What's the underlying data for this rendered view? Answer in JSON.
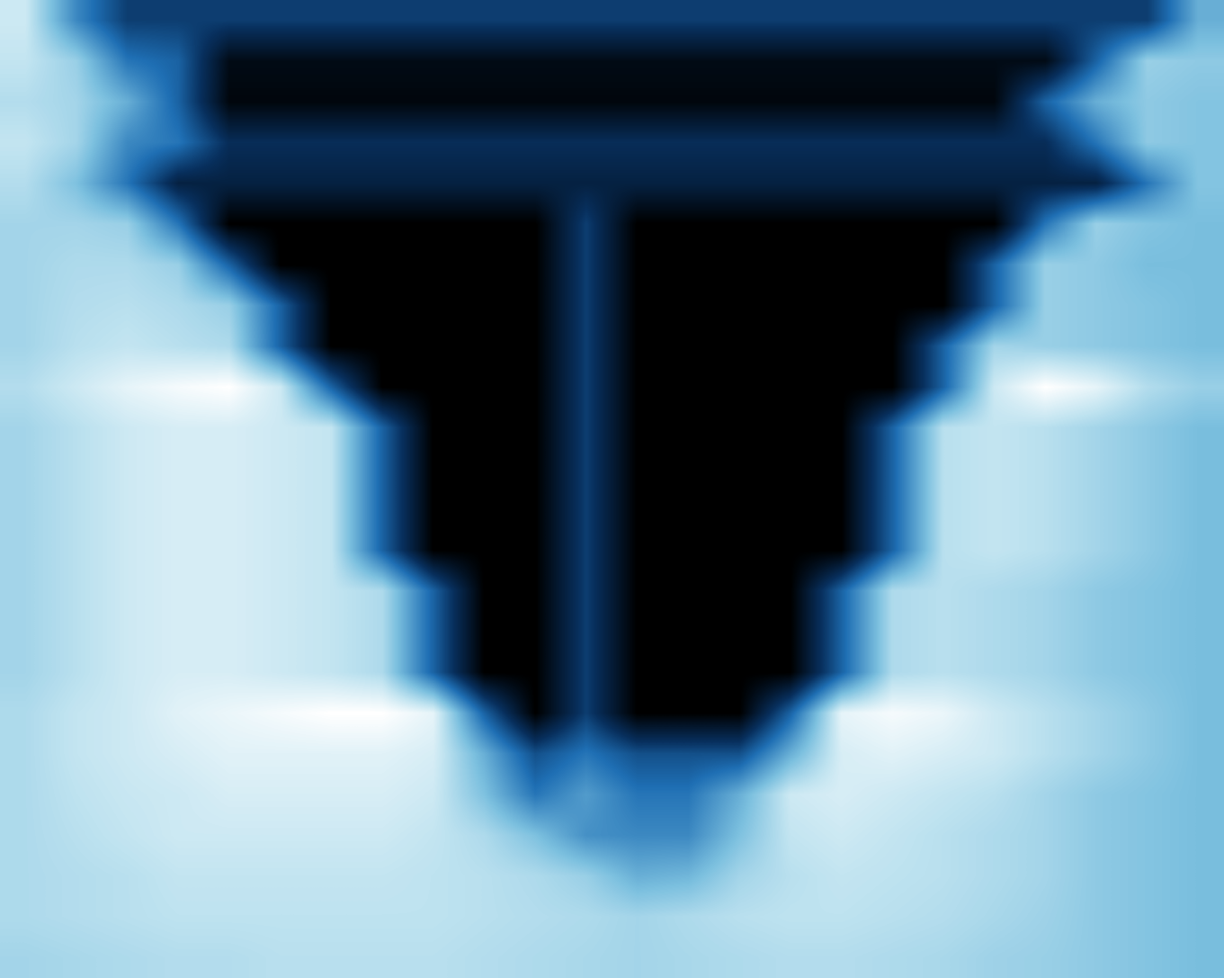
{
  "chart_data": {
    "type": "heatmap",
    "tick_labels": false,
    "cells": [
      [
        0.8,
        0.5,
        0.3,
        0.3,
        0.3,
        0.3,
        0.3,
        0.3,
        0.3,
        0.3,
        0.3,
        0.3,
        0.3,
        0.3,
        0.3,
        0.3,
        0.3,
        0.3,
        0.3,
        0.3,
        0.3,
        0.3,
        0.3,
        0.6
      ],
      [
        0.78,
        0.7,
        0.45,
        0.4,
        0.1,
        0.1,
        0.1,
        0.1,
        0.1,
        0.1,
        0.1,
        0.1,
        0.1,
        0.1,
        0.1,
        0.1,
        0.1,
        0.1,
        0.1,
        0.1,
        0.1,
        0.4,
        0.7,
        0.68
      ],
      [
        0.75,
        0.72,
        0.6,
        0.4,
        0.08,
        0.08,
        0.08,
        0.08,
        0.08,
        0.08,
        0.08,
        0.08,
        0.08,
        0.08,
        0.08,
        0.08,
        0.08,
        0.08,
        0.08,
        0.08,
        0.4,
        0.6,
        0.68,
        0.66
      ],
      [
        0.78,
        0.72,
        0.5,
        0.45,
        0.25,
        0.25,
        0.25,
        0.25,
        0.25,
        0.25,
        0.25,
        0.25,
        0.25,
        0.25,
        0.25,
        0.25,
        0.25,
        0.25,
        0.25,
        0.25,
        0.25,
        0.45,
        0.68,
        0.66
      ],
      [
        0.75,
        0.65,
        0.45,
        0.2,
        0.2,
        0.2,
        0.2,
        0.2,
        0.2,
        0.2,
        0.2,
        0.2,
        0.2,
        0.2,
        0.2,
        0.2,
        0.2,
        0.2,
        0.2,
        0.2,
        0.2,
        0.2,
        0.45,
        0.66
      ],
      [
        0.72,
        0.72,
        0.7,
        0.45,
        0.05,
        0.05,
        0.05,
        0.05,
        0.05,
        0.05,
        0.05,
        0.3,
        0.05,
        0.05,
        0.05,
        0.05,
        0.05,
        0.05,
        0.05,
        0.05,
        0.45,
        0.7,
        0.66,
        0.64
      ],
      [
        0.72,
        0.74,
        0.74,
        0.7,
        0.4,
        0.05,
        0.05,
        0.05,
        0.05,
        0.05,
        0.05,
        0.3,
        0.05,
        0.05,
        0.05,
        0.05,
        0.05,
        0.05,
        0.05,
        0.4,
        0.7,
        0.68,
        0.64,
        0.64
      ],
      [
        0.72,
        0.75,
        0.76,
        0.74,
        0.7,
        0.4,
        0.05,
        0.05,
        0.05,
        0.05,
        0.05,
        0.3,
        0.05,
        0.05,
        0.05,
        0.05,
        0.05,
        0.05,
        0.05,
        0.4,
        0.7,
        0.68,
        0.66,
        0.64
      ],
      [
        0.72,
        0.76,
        0.78,
        0.76,
        0.74,
        0.4,
        0.05,
        0.05,
        0.05,
        0.05,
        0.05,
        0.3,
        0.05,
        0.05,
        0.05,
        0.05,
        0.05,
        0.05,
        0.4,
        0.72,
        0.7,
        0.68,
        0.66,
        0.64
      ],
      [
        0.75,
        0.8,
        0.85,
        0.88,
        0.9,
        0.8,
        0.4,
        0.05,
        0.05,
        0.05,
        0.05,
        0.3,
        0.05,
        0.05,
        0.05,
        0.05,
        0.05,
        0.05,
        0.4,
        0.8,
        0.9,
        0.85,
        0.75,
        0.7
      ],
      [
        0.72,
        0.76,
        0.8,
        0.82,
        0.82,
        0.8,
        0.78,
        0.4,
        0.05,
        0.05,
        0.05,
        0.3,
        0.05,
        0.05,
        0.05,
        0.05,
        0.05,
        0.4,
        0.76,
        0.78,
        0.76,
        0.72,
        0.68,
        0.64
      ],
      [
        0.72,
        0.76,
        0.8,
        0.82,
        0.82,
        0.8,
        0.78,
        0.4,
        0.05,
        0.05,
        0.05,
        0.3,
        0.05,
        0.05,
        0.05,
        0.05,
        0.05,
        0.4,
        0.76,
        0.78,
        0.76,
        0.72,
        0.68,
        0.64
      ],
      [
        0.72,
        0.76,
        0.8,
        0.82,
        0.82,
        0.8,
        0.78,
        0.4,
        0.05,
        0.05,
        0.05,
        0.3,
        0.05,
        0.05,
        0.05,
        0.05,
        0.05,
        0.4,
        0.76,
        0.78,
        0.76,
        0.72,
        0.68,
        0.64
      ],
      [
        0.72,
        0.76,
        0.8,
        0.82,
        0.82,
        0.8,
        0.78,
        0.4,
        0.05,
        0.05,
        0.05,
        0.3,
        0.05,
        0.05,
        0.05,
        0.05,
        0.05,
        0.4,
        0.76,
        0.78,
        0.76,
        0.72,
        0.68,
        0.64
      ],
      [
        0.72,
        0.76,
        0.8,
        0.82,
        0.82,
        0.8,
        0.78,
        0.74,
        0.4,
        0.05,
        0.05,
        0.3,
        0.05,
        0.05,
        0.05,
        0.05,
        0.4,
        0.74,
        0.76,
        0.74,
        0.72,
        0.68,
        0.66,
        0.64
      ],
      [
        0.72,
        0.76,
        0.8,
        0.82,
        0.82,
        0.8,
        0.78,
        0.74,
        0.4,
        0.05,
        0.05,
        0.3,
        0.05,
        0.05,
        0.05,
        0.05,
        0.4,
        0.74,
        0.76,
        0.74,
        0.72,
        0.68,
        0.66,
        0.64
      ],
      [
        0.72,
        0.76,
        0.8,
        0.82,
        0.82,
        0.8,
        0.78,
        0.74,
        0.4,
        0.05,
        0.05,
        0.3,
        0.05,
        0.05,
        0.05,
        0.05,
        0.4,
        0.74,
        0.76,
        0.74,
        0.72,
        0.68,
        0.66,
        0.64
      ],
      [
        0.74,
        0.78,
        0.8,
        0.84,
        0.86,
        0.88,
        0.9,
        0.9,
        0.85,
        0.4,
        0.05,
        0.3,
        0.05,
        0.05,
        0.05,
        0.4,
        0.85,
        0.88,
        0.86,
        0.8,
        0.76,
        0.72,
        0.68,
        0.64
      ],
      [
        0.74,
        0.78,
        0.8,
        0.82,
        0.84,
        0.84,
        0.84,
        0.84,
        0.82,
        0.6,
        0.35,
        0.45,
        0.35,
        0.35,
        0.35,
        0.6,
        0.82,
        0.84,
        0.82,
        0.8,
        0.76,
        0.72,
        0.68,
        0.64
      ],
      [
        0.74,
        0.77,
        0.79,
        0.8,
        0.82,
        0.82,
        0.82,
        0.82,
        0.8,
        0.65,
        0.45,
        0.55,
        0.45,
        0.45,
        0.6,
        0.8,
        0.82,
        0.8,
        0.78,
        0.76,
        0.72,
        0.68,
        0.66,
        0.64
      ],
      [
        0.74,
        0.76,
        0.78,
        0.8,
        0.8,
        0.8,
        0.8,
        0.8,
        0.78,
        0.74,
        0.65,
        0.52,
        0.5,
        0.5,
        0.65,
        0.78,
        0.8,
        0.78,
        0.76,
        0.74,
        0.72,
        0.68,
        0.66,
        0.64
      ],
      [
        0.74,
        0.75,
        0.76,
        0.78,
        0.78,
        0.78,
        0.78,
        0.78,
        0.77,
        0.76,
        0.74,
        0.7,
        0.6,
        0.62,
        0.72,
        0.76,
        0.78,
        0.77,
        0.76,
        0.74,
        0.72,
        0.68,
        0.66,
        0.64
      ],
      [
        0.74,
        0.75,
        0.76,
        0.77,
        0.77,
        0.77,
        0.77,
        0.77,
        0.77,
        0.76,
        0.75,
        0.74,
        0.72,
        0.74,
        0.76,
        0.77,
        0.77,
        0.76,
        0.75,
        0.73,
        0.71,
        0.68,
        0.66,
        0.64
      ],
      [
        0.72,
        0.73,
        0.74,
        0.75,
        0.75,
        0.76,
        0.76,
        0.76,
        0.76,
        0.75,
        0.74,
        0.73,
        0.72,
        0.73,
        0.74,
        0.75,
        0.75,
        0.74,
        0.73,
        0.71,
        0.7,
        0.68,
        0.66,
        0.64
      ]
    ]
  }
}
